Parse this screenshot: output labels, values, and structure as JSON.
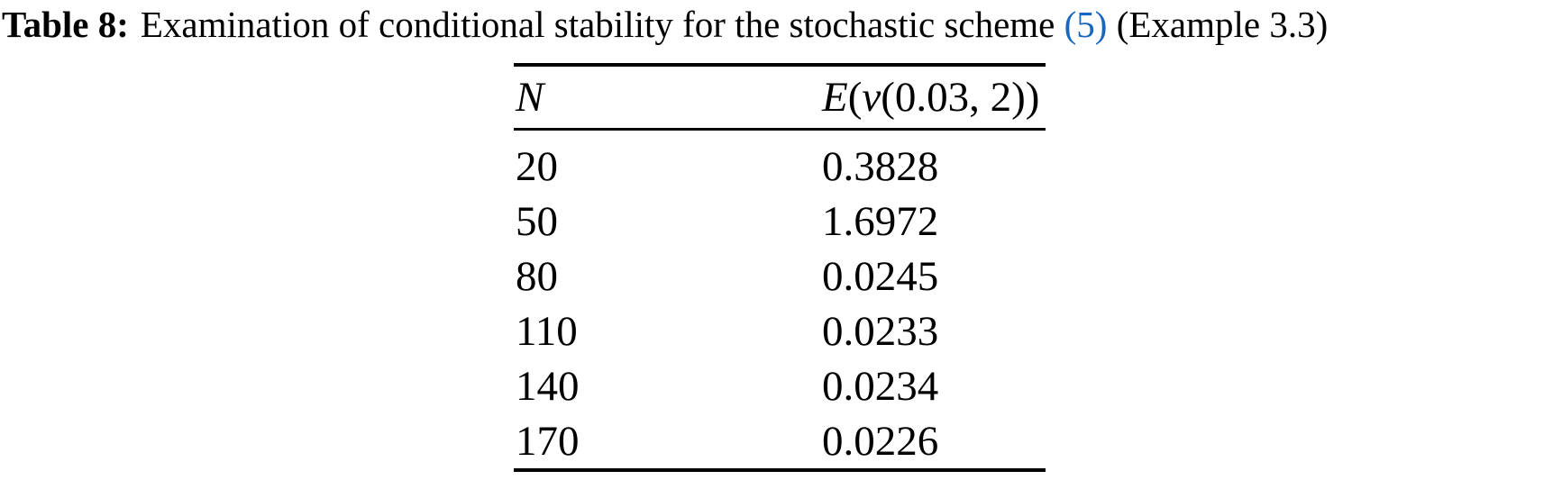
{
  "caption": {
    "label": "Table 8:",
    "text_before_ref": "Examination of conditional stability for the stochastic scheme",
    "ref": "(5)",
    "text_after_ref": "(Example 3.3)"
  },
  "colors": {
    "ref_blue": "#1767c0",
    "text": "#000000",
    "background": "#ffffff",
    "rule": "#000000"
  },
  "chart_data": {
    "type": "table",
    "title": "Table 8: Examination of conditional stability for the stochastic scheme (5) (Example 3.3)",
    "columns": [
      "N",
      "E(v(0.03, 2))"
    ],
    "rows": [
      [
        20,
        0.3828
      ],
      [
        50,
        1.6972
      ],
      [
        80,
        0.0245
      ],
      [
        110,
        0.0233
      ],
      [
        140,
        0.0234
      ],
      [
        170,
        0.0226
      ]
    ]
  },
  "table": {
    "header": {
      "col1": "N",
      "col2": {
        "func": "E",
        "open_paren": "(",
        "var": "v",
        "args": "(0.03, 2))"
      }
    },
    "rows": [
      {
        "n": "20",
        "value": "0.3828"
      },
      {
        "n": "50",
        "value": "1.6972"
      },
      {
        "n": "80",
        "value": "0.0245"
      },
      {
        "n": "110",
        "value": "0.0233"
      },
      {
        "n": "140",
        "value": "0.0234"
      },
      {
        "n": "170",
        "value": "0.0226"
      }
    ]
  }
}
